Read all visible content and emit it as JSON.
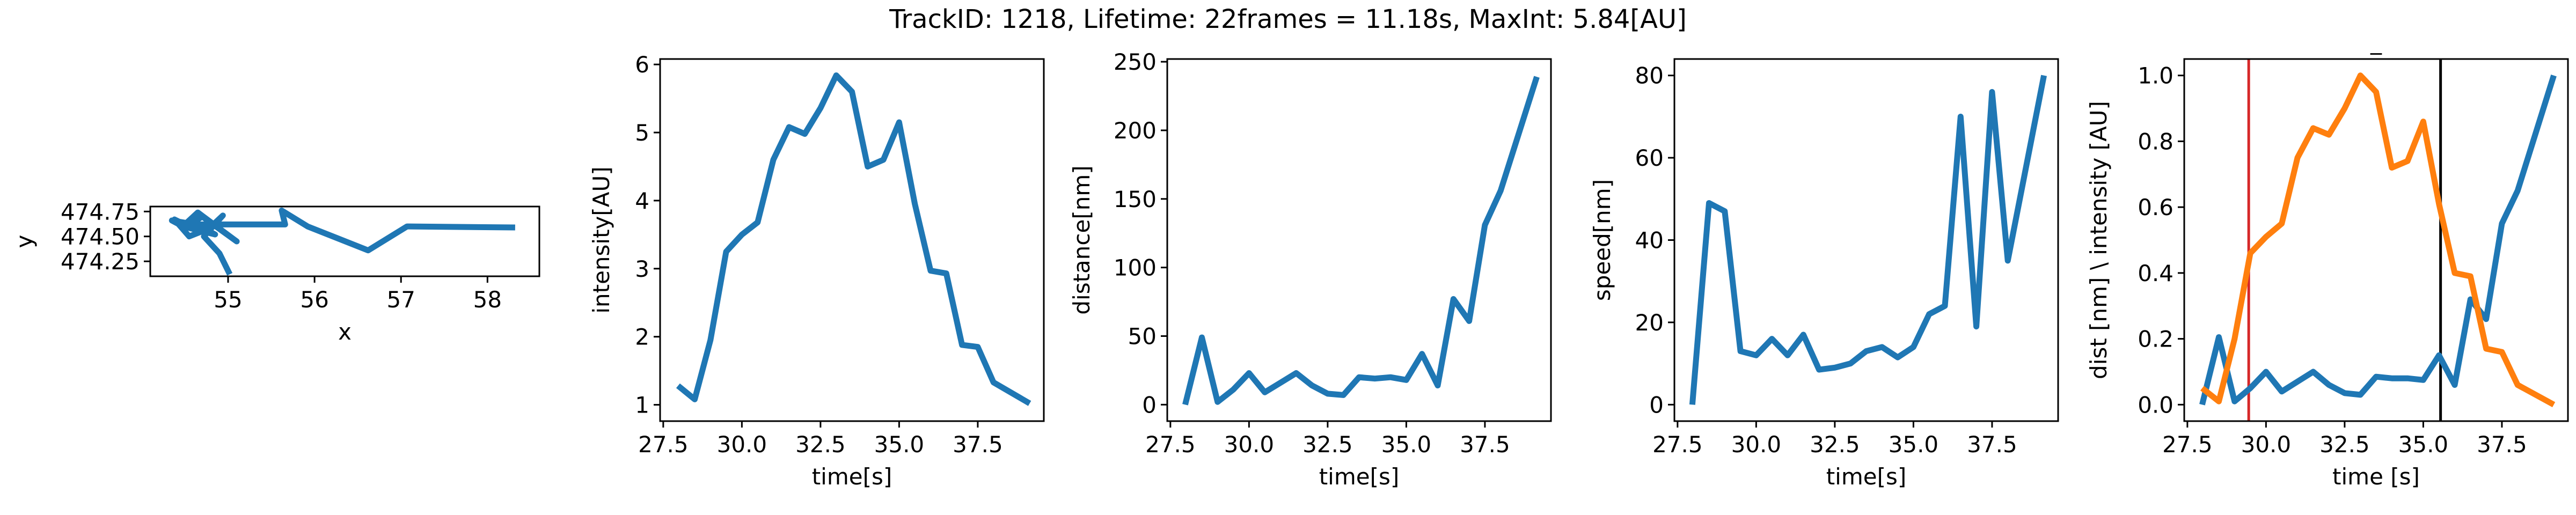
{
  "figure": {
    "suptitle": "TrackID: 1218, Lifetime: 22frames = 11.18s, MaxInt: 5.84[AU]"
  },
  "colors": {
    "blue": "#1f77b4",
    "orange": "#ff7f0e",
    "red": "#d62728",
    "black": "#000000"
  },
  "chart_data": [
    {
      "type": "line",
      "title": "",
      "xlabel": "x",
      "ylabel": "y",
      "xlim": [
        54.1,
        58.6
      ],
      "ylim": [
        474.1,
        474.8
      ],
      "xticks": [
        55,
        56,
        57,
        58
      ],
      "yticks": [
        474.25,
        474.5,
        474.75
      ],
      "xtick_labels": [
        "55",
        "56",
        "57",
        "58"
      ],
      "ytick_labels": [
        "474.25",
        "474.50",
        "474.75"
      ],
      "series": [
        {
          "color": "#1f77b4",
          "x": [
            55.02,
            54.9,
            54.72,
            54.94,
            54.78,
            54.55,
            54.38,
            54.5,
            54.65,
            55.1,
            54.7,
            54.6,
            54.85,
            54.48,
            54.35,
            54.62,
            55.66,
            55.62,
            55.92,
            56.62,
            57.07,
            58.32
          ],
          "y": [
            474.12,
            474.33,
            474.5,
            474.71,
            474.58,
            474.5,
            474.67,
            474.62,
            474.74,
            474.45,
            474.7,
            474.64,
            474.52,
            474.6,
            474.66,
            474.62,
            474.62,
            474.76,
            474.6,
            474.36,
            474.6,
            474.59
          ]
        }
      ]
    },
    {
      "type": "line",
      "title": "",
      "xlabel": "time[s]",
      "ylabel": "intensity[AU]",
      "xlim": [
        27.4,
        39.6
      ],
      "ylim": [
        0.76,
        6.08
      ],
      "xticks": [
        27.5,
        30.0,
        32.5,
        35.0,
        37.5
      ],
      "yticks": [
        1,
        2,
        3,
        4,
        5,
        6
      ],
      "xtick_labels": [
        "27.5",
        "30.0",
        "32.5",
        "35.0",
        "37.5"
      ],
      "ytick_labels": [
        "1",
        "2",
        "3",
        "4",
        "5",
        "6"
      ],
      "series": [
        {
          "color": "#1f77b4",
          "x": [
            27.97,
            28.5,
            29.0,
            29.5,
            30.0,
            30.5,
            31.0,
            31.5,
            32.0,
            32.5,
            33.0,
            33.5,
            34.0,
            34.5,
            35.0,
            35.5,
            36.0,
            36.5,
            37.0,
            37.5,
            38.0,
            39.15
          ],
          "y": [
            1.28,
            1.08,
            1.95,
            3.25,
            3.5,
            3.68,
            4.6,
            5.08,
            4.98,
            5.36,
            5.84,
            5.6,
            4.5,
            4.6,
            5.15,
            3.95,
            2.97,
            2.93,
            1.88,
            1.85,
            1.33,
            1.02
          ]
        }
      ]
    },
    {
      "type": "line",
      "title": "",
      "xlabel": "time[s]",
      "ylabel": "distance[nm]",
      "xlim": [
        27.4,
        39.6
      ],
      "ylim": [
        -12,
        252
      ],
      "xticks": [
        27.5,
        30.0,
        32.5,
        35.0,
        37.5
      ],
      "yticks": [
        0,
        50,
        100,
        150,
        200,
        250
      ],
      "xtick_labels": [
        "27.5",
        "30.0",
        "32.5",
        "35.0",
        "37.5"
      ],
      "ytick_labels": [
        "0",
        "50",
        "100",
        "150",
        "200",
        "250"
      ],
      "series": [
        {
          "color": "#1f77b4",
          "x": [
            27.97,
            28.5,
            29.0,
            29.5,
            30.0,
            30.5,
            31.0,
            31.5,
            32.0,
            32.5,
            33.0,
            33.5,
            34.0,
            34.5,
            35.0,
            35.5,
            36.0,
            36.5,
            37.0,
            37.5,
            38.0,
            39.15
          ],
          "y": [
            0,
            49,
            2,
            11,
            23,
            9,
            16,
            23,
            14,
            8,
            7,
            20,
            19,
            20,
            18,
            37,
            14,
            77,
            61,
            131,
            156,
            239
          ]
        }
      ]
    },
    {
      "type": "line",
      "title": "",
      "xlabel": "time[s]",
      "ylabel": "speed[nm]",
      "xlim": [
        27.4,
        39.6
      ],
      "ylim": [
        -4,
        84
      ],
      "xticks": [
        27.5,
        30.0,
        32.5,
        35.0,
        37.5
      ],
      "yticks": [
        0,
        20,
        40,
        60,
        80
      ],
      "xtick_labels": [
        "27.5",
        "30.0",
        "32.5",
        "35.0",
        "37.5"
      ],
      "ytick_labels": [
        "0",
        "20",
        "40",
        "60",
        "80"
      ],
      "series": [
        {
          "color": "#1f77b4",
          "x": [
            27.97,
            28.5,
            29.0,
            29.5,
            30.0,
            30.5,
            31.0,
            31.5,
            32.0,
            32.5,
            33.0,
            33.5,
            34.0,
            34.5,
            35.0,
            35.5,
            36.0,
            36.5,
            37.0,
            37.5,
            38.0,
            39.15
          ],
          "y": [
            0,
            49,
            47,
            13,
            12,
            16,
            12,
            17,
            8.5,
            9,
            10,
            13,
            14,
            11.5,
            14,
            22,
            24,
            70,
            19,
            76,
            35,
            80
          ]
        }
      ]
    },
    {
      "type": "line",
      "title": "_",
      "xlabel": "time [s]",
      "ylabel": "dist [nm] \\ intensity [AU]",
      "xlim": [
        27.4,
        39.6
      ],
      "ylim": [
        -0.05,
        1.05
      ],
      "xticks": [
        27.5,
        30.0,
        32.5,
        35.0,
        37.5
      ],
      "yticks": [
        0.0,
        0.2,
        0.4,
        0.6,
        0.8,
        1.0
      ],
      "xtick_labels": [
        "27.5",
        "30.0",
        "32.5",
        "35.0",
        "37.5"
      ],
      "ytick_labels": [
        "0.0",
        "0.2",
        "0.4",
        "0.6",
        "0.8",
        "1.0"
      ],
      "vlines": [
        {
          "x": 29.45,
          "color": "#d62728"
        },
        {
          "x": 35.55,
          "color": "#000000"
        }
      ],
      "series": [
        {
          "color": "#1f77b4",
          "x": [
            27.97,
            28.5,
            29.0,
            29.5,
            30.0,
            30.5,
            31.0,
            31.5,
            32.0,
            32.5,
            33.0,
            33.5,
            34.0,
            34.5,
            35.0,
            35.5,
            36.0,
            36.5,
            37.0,
            37.5,
            38.0,
            39.15
          ],
          "y": [
            0.0,
            0.205,
            0.01,
            0.05,
            0.1,
            0.04,
            0.07,
            0.1,
            0.06,
            0.035,
            0.03,
            0.085,
            0.08,
            0.08,
            0.075,
            0.15,
            0.06,
            0.32,
            0.26,
            0.55,
            0.65,
            1.0
          ]
        },
        {
          "color": "#ff7f0e",
          "x": [
            27.97,
            28.5,
            29.0,
            29.5,
            30.0,
            30.5,
            31.0,
            31.5,
            32.0,
            32.5,
            33.0,
            33.5,
            34.0,
            34.5,
            35.0,
            35.5,
            36.0,
            36.5,
            37.0,
            37.5,
            38.0,
            39.15
          ],
          "y": [
            0.05,
            0.01,
            0.2,
            0.46,
            0.51,
            0.55,
            0.75,
            0.84,
            0.82,
            0.9,
            1.0,
            0.95,
            0.72,
            0.74,
            0.86,
            0.61,
            0.4,
            0.39,
            0.17,
            0.16,
            0.06,
            0.0
          ]
        }
      ]
    }
  ]
}
